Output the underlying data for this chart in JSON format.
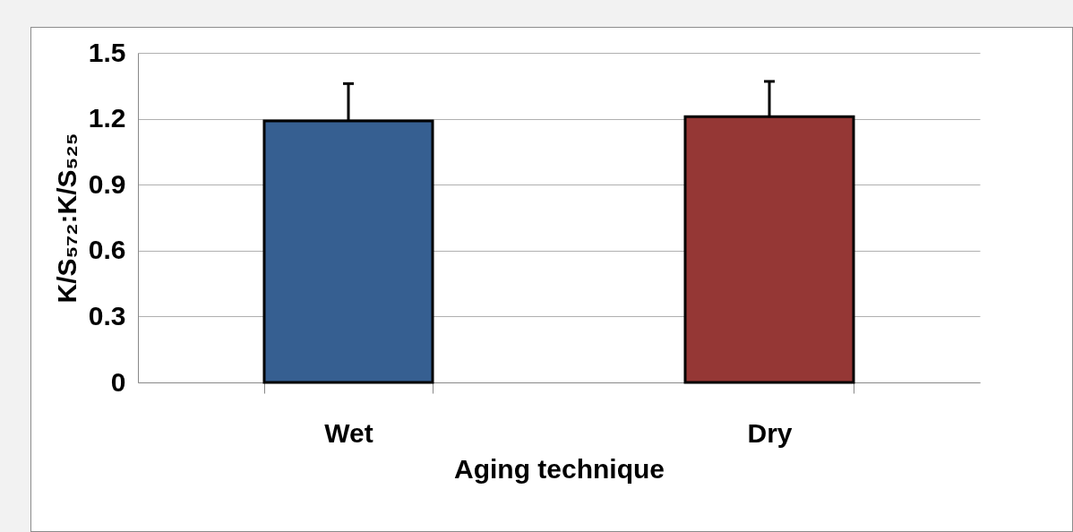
{
  "chart_data": {
    "type": "bar",
    "xlabel": "Aging technique",
    "ylabel": "K/S₅₇₂:K/S₅₂₅",
    "categories": [
      "Wet",
      "Dry"
    ],
    "values": [
      1.19,
      1.21
    ],
    "colors": [
      "#365f91",
      "#953735"
    ],
    "errors": [
      [
        1.19,
        1.36
      ],
      [
        1.21,
        1.37
      ]
    ],
    "ylim": [
      0,
      1.5
    ],
    "yticks": [
      {
        "value": 0,
        "label": "0"
      },
      0.3,
      0.6,
      0.9,
      1.2,
      1.5
    ],
    "grid": "y"
  }
}
